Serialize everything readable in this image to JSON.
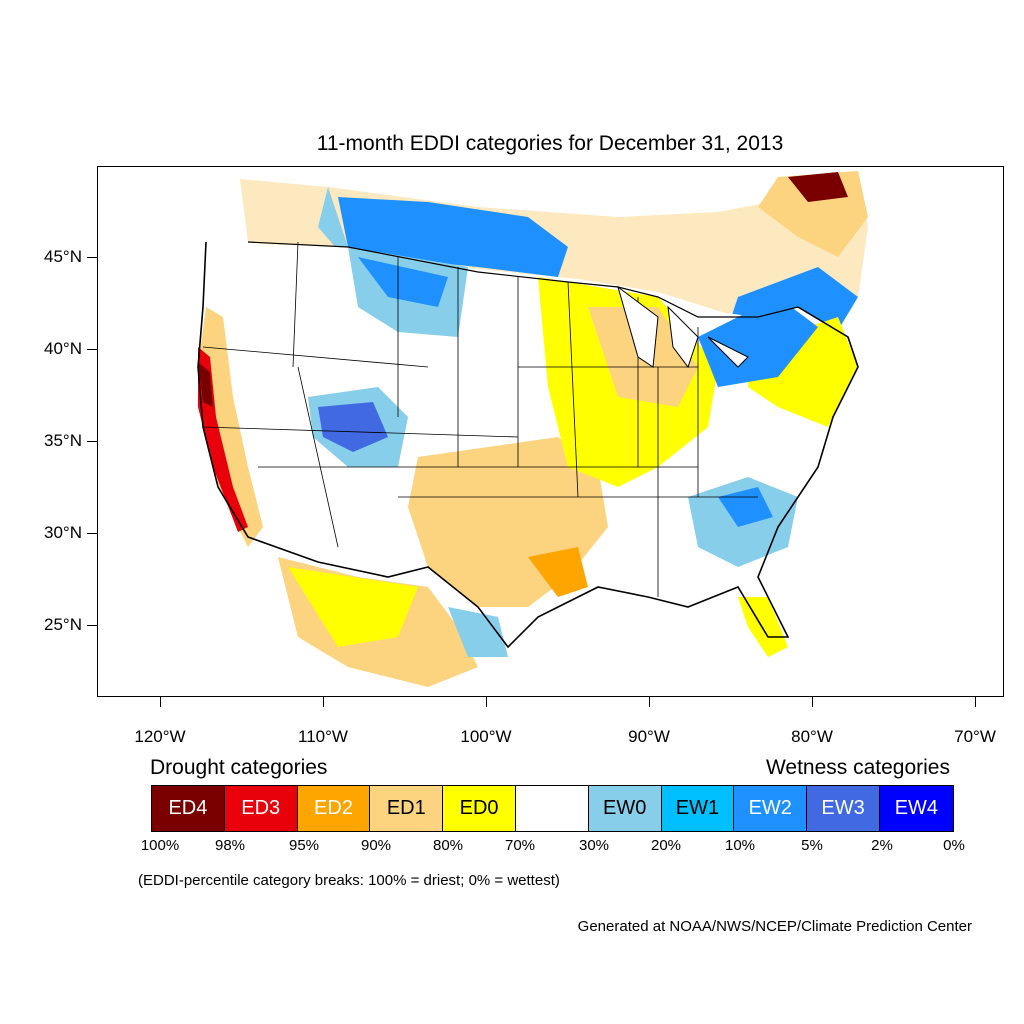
{
  "title": "11-month EDDI categories for December 31, 2013",
  "map": {
    "projection": "conic",
    "lon_labels": [
      "120°W",
      "110°W",
      "100°W",
      "90°W",
      "80°W",
      "70°W"
    ],
    "lat_labels": [
      "45°N",
      "40°N",
      "35°N",
      "30°N",
      "25°N"
    ],
    "region": "Contiguous United States with southern Canada and northern Mexico"
  },
  "legend": {
    "drought_heading": "Drought categories",
    "wetness_heading": "Wetness categories",
    "categories": [
      {
        "label": "ED4",
        "color": "#7a0000",
        "text_color": "#ffffff"
      },
      {
        "label": "ED3",
        "color": "#e8000b",
        "text_color": "#ffffff"
      },
      {
        "label": "ED2",
        "color": "#ffa500",
        "text_color": "#ffffff"
      },
      {
        "label": "ED1",
        "color": "#fcd37f",
        "text_color": "#000000"
      },
      {
        "label": "ED0",
        "color": "#ffff00",
        "text_color": "#000000"
      },
      {
        "label": "",
        "color": "#ffffff",
        "text_color": "#000000"
      },
      {
        "label": "EW0",
        "color": "#87ceeb",
        "text_color": "#000000"
      },
      {
        "label": "EW1",
        "color": "#00bfff",
        "text_color": "#000000"
      },
      {
        "label": "EW2",
        "color": "#1e90ff",
        "text_color": "#ffffff"
      },
      {
        "label": "EW3",
        "color": "#4169e1",
        "text_color": "#ffffff"
      },
      {
        "label": "EW4",
        "color": "#0000ff",
        "text_color": "#ffffff"
      }
    ],
    "breaks": [
      "100%",
      "98%",
      "95%",
      "90%",
      "80%",
      "70%",
      "30%",
      "20%",
      "10%",
      "5%",
      "2%",
      "0%"
    ],
    "note": "(EDDI-percentile category breaks: 100% = driest; 0% = wettest)"
  },
  "credit": "Generated at NOAA/NWS/NCEP/Climate Prediction Center"
}
